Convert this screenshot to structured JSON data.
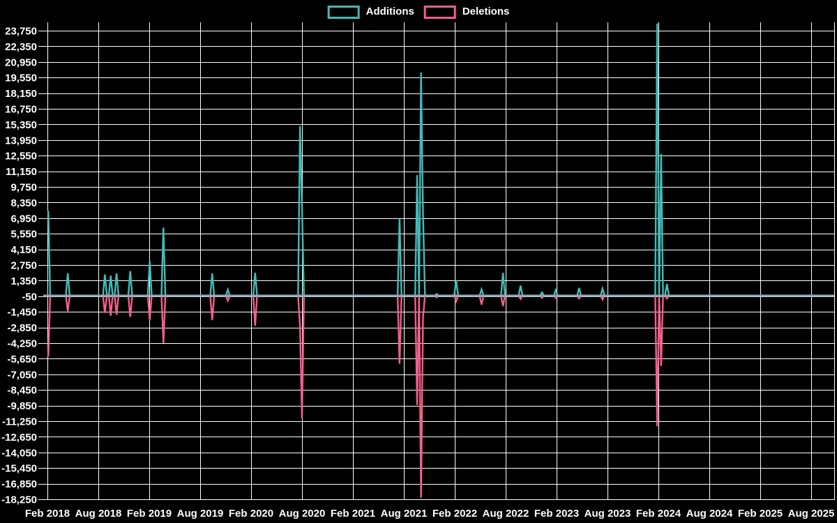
{
  "chart_data": {
    "type": "line",
    "title": "",
    "legend_position": "top-center",
    "background": "#000000",
    "grid": true,
    "grid_color": "#ffffff",
    "text_color": "#ffffff",
    "zero_line_color": "#8aa9b2",
    "series": [
      {
        "name": "Additions",
        "color": "#41bcb8"
      },
      {
        "name": "Deletions",
        "color": "#f4608c"
      }
    ],
    "y_axis": {
      "min": -18250,
      "max": 23750,
      "step": 1400,
      "tick_labels": [
        "23,750",
        "22,350",
        "20,950",
        "19,550",
        "18,150",
        "16,750",
        "15,350",
        "13,950",
        "12,550",
        "11,150",
        "9,750",
        "8,350",
        "6,950",
        "5,550",
        "4,150",
        "2,750",
        "1,350",
        "-50",
        "-1,450",
        "-2,850",
        "-4,250",
        "-5,650",
        "-7,050",
        "-8,450",
        "-9,850",
        "-11,250",
        "-12,650",
        "-14,050",
        "-15,450",
        "-16,850",
        "-18,250"
      ]
    },
    "x_axis": {
      "tick_labels": [
        "Feb 2018",
        "Aug 2018",
        "Feb 2019",
        "Aug 2019",
        "Feb 2020",
        "Aug 2020",
        "Feb 2021",
        "Aug 2021",
        "Feb 2022",
        "Aug 2022",
        "Feb 2023",
        "Aug 2023",
        "Feb 2024",
        "Aug 2024",
        "Feb 2025",
        "Aug 2025"
      ],
      "range_start": "2018-02-04",
      "range_end": "2025-10-05"
    },
    "point_format": [
      "week_start_date",
      "additions",
      "deletions"
    ],
    "points": [
      [
        "2018-02-04",
        7600,
        -5450
      ],
      [
        "2018-04-15",
        2000,
        -1400
      ],
      [
        "2018-08-26",
        1900,
        -1550
      ],
      [
        "2018-09-16",
        1800,
        -1800
      ],
      [
        "2018-10-07",
        2000,
        -1700
      ],
      [
        "2018-11-25",
        2200,
        -1900
      ],
      [
        "2019-02-03",
        3100,
        -2200
      ],
      [
        "2019-03-24",
        6100,
        -4250
      ],
      [
        "2019-09-15",
        2000,
        -2200
      ],
      [
        "2019-11-10",
        550,
        -450
      ],
      [
        "2020-02-16",
        2050,
        -2700
      ],
      [
        "2020-07-26",
        15200,
        -2800
      ],
      [
        "2020-08-02",
        8000,
        -11000
      ],
      [
        "2021-07-18",
        6900,
        -6100
      ],
      [
        "2021-09-19",
        10800,
        -9800
      ],
      [
        "2021-10-03",
        20000,
        -18100
      ],
      [
        "2021-10-10",
        7500,
        -2000
      ],
      [
        "2021-11-28",
        150,
        -150
      ],
      [
        "2022-02-06",
        1400,
        -500
      ],
      [
        "2022-05-08",
        560,
        -810
      ],
      [
        "2022-07-24",
        2050,
        -940
      ],
      [
        "2022-09-25",
        900,
        -300
      ],
      [
        "2022-12-11",
        300,
        -200
      ],
      [
        "2023-01-29",
        500,
        -200
      ],
      [
        "2023-04-23",
        690,
        -250
      ],
      [
        "2023-07-16",
        625,
        -350
      ],
      [
        "2024-01-28",
        24400,
        -11700
      ],
      [
        "2024-02-11",
        12700,
        -6300
      ],
      [
        "2024-03-03",
        1050,
        -250
      ]
    ]
  }
}
